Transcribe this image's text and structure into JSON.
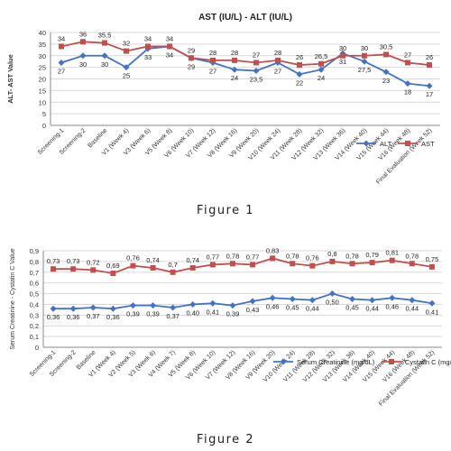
{
  "chart_data": [
    {
      "type": "line",
      "title": "AST  (IU/L) - ALT (IU/L)",
      "xlabel": "",
      "ylabel": "ALT- AST Value",
      "ylim": [
        0,
        40
      ],
      "yticks": [
        0,
        5,
        10,
        15,
        20,
        25,
        30,
        35,
        40
      ],
      "grid": true,
      "legend": "bottom-right",
      "categories": [
        "Screening-1",
        "Screening-2",
        "Baseline",
        "V1 (Week 4)",
        "V3 (Week 6)",
        "V5 (Week 8)",
        "V6 (Week 10)",
        "V7 (Week 12)",
        "V8 (Week 16)",
        "V9 (Week 20)",
        "V10 (Week 24)",
        "V11 (Week 28)",
        "V12 (Week 32)",
        "V13 (Week 36)",
        "V14 (Week 40)",
        "V15 (Week 44)",
        "V16 (Week 48)",
        "Final Evaluation (Week 52)"
      ],
      "series": [
        {
          "name": "ALT",
          "color": "#4472C4",
          "marker": "diamond",
          "values": [
            27,
            30,
            30,
            25,
            33,
            34,
            29,
            27,
            24,
            23.5,
            27,
            22,
            24,
            31,
            27.5,
            23,
            18,
            17
          ],
          "labels": [
            "27",
            "30",
            "30",
            "25",
            "33",
            "34",
            "29",
            "27",
            "24",
            "23,5",
            "27",
            "22",
            "24",
            "31",
            "27,5",
            "23",
            "18",
            "17"
          ]
        },
        {
          "name": "AST",
          "color": "#C0504D",
          "marker": "square",
          "values": [
            34,
            36,
            35.5,
            32,
            34,
            34,
            29,
            28,
            28,
            27,
            28,
            26,
            26.5,
            30,
            30,
            30.5,
            27,
            26
          ],
          "labels": [
            "34",
            "36",
            "35,5",
            "32",
            "34",
            "34",
            "29",
            "28",
            "28",
            "27",
            "28",
            "26",
            "26,5",
            "30",
            "30",
            "30,5",
            "27",
            "26"
          ]
        }
      ]
    },
    {
      "type": "line",
      "title": "",
      "xlabel": "",
      "ylabel": "Serum Creatinine - Cystatin C Value",
      "ylim": [
        0,
        0.9
      ],
      "yticks": [
        "0",
        "0,1",
        "0,2",
        "0,3",
        "0,4",
        "0,5",
        "0,6",
        "0,7",
        "0,8",
        "0,9"
      ],
      "grid": true,
      "legend": "bottom-right",
      "categories": [
        "Screening-1",
        "Screening-2",
        "Baseline",
        "V1 (Week 4)",
        "V2 (Week 5)",
        "V3 (Week 6)",
        "V4 (Week 7)",
        "V5 (Week 8)",
        "V6 (Week 10)",
        "V7 (Week 12)",
        "V8 (Week 16)",
        "V9 (Week 20)",
        "V10 (Week 24)",
        "V11 (Week 28)",
        "V12 (Week 32)",
        "V13 (Week 36)",
        "V14 (Week 40)",
        "V15 (Week 44)",
        "V16 (Week 48)",
        "Final Evaluation (Week 52)"
      ],
      "series": [
        {
          "name": "Serum Creatinine (mg/dL)",
          "color": "#4472C4",
          "marker": "diamond",
          "values": [
            0.36,
            0.36,
            0.37,
            0.36,
            0.39,
            0.39,
            0.37,
            0.4,
            0.41,
            0.39,
            0.43,
            0.46,
            0.45,
            0.44,
            0.5,
            0.45,
            0.44,
            0.46,
            0.44,
            0.41
          ],
          "labels": [
            "0,36",
            "0,36",
            "0,37",
            "0,36",
            "0,39",
            "0,39",
            "0,37",
            "0,40",
            "0,41",
            "0,39",
            "0,43",
            "0,46",
            "0,45",
            "0,44",
            "0,50",
            "0,45",
            "0,44",
            "0,46",
            "0,44",
            "0,41"
          ]
        },
        {
          "name": "Cystatin C (mg/L)",
          "color": "#C0504D",
          "marker": "square",
          "values": [
            0.73,
            0.73,
            0.72,
            0.69,
            0.76,
            0.74,
            0.7,
            0.74,
            0.77,
            0.78,
            0.77,
            0.83,
            0.78,
            0.76,
            0.8,
            0.78,
            0.79,
            0.81,
            0.78,
            0.75
          ],
          "labels": [
            "0,73",
            "0,73",
            "0,72",
            "0,69",
            "0,76",
            "0,74",
            "0,7",
            "0,74",
            "0,77",
            "0,78",
            "0,77",
            "0,83",
            "0,78",
            "0,76",
            "0,8",
            "0,78",
            "0,79",
            "0,81",
            "0,78",
            "0,75"
          ]
        }
      ]
    }
  ],
  "captions": {
    "figure1": "Figure 1",
    "figure2": "Figure 2"
  }
}
